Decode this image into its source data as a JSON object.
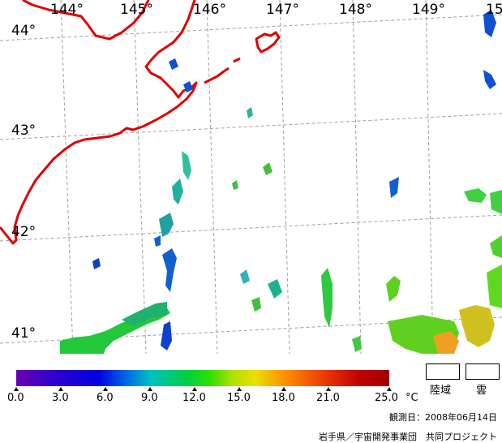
{
  "map": {
    "lon_labels": [
      "144°",
      "145°",
      "146°",
      "147°",
      "148°",
      "149°",
      "15"
    ],
    "lat_labels": [
      "44°",
      "43°",
      "42°",
      "41°"
    ],
    "colors": {
      "coastline": "#e00000",
      "grid": "#a0a0a0",
      "background": "#ffffff"
    }
  },
  "colorbar": {
    "ticks": [
      "0.0",
      "3.0",
      "6.0",
      "9.0",
      "12.0",
      "15.0",
      "18.0",
      "21.0",
      "25.0"
    ],
    "unit": "°C"
  },
  "legend": {
    "land_label": "陸域",
    "cloud_label": "雲"
  },
  "observation_date": "観測日：2008年06月14日",
  "credit": "岩手県／宇宙開発事業団　共同プロジェクト"
}
